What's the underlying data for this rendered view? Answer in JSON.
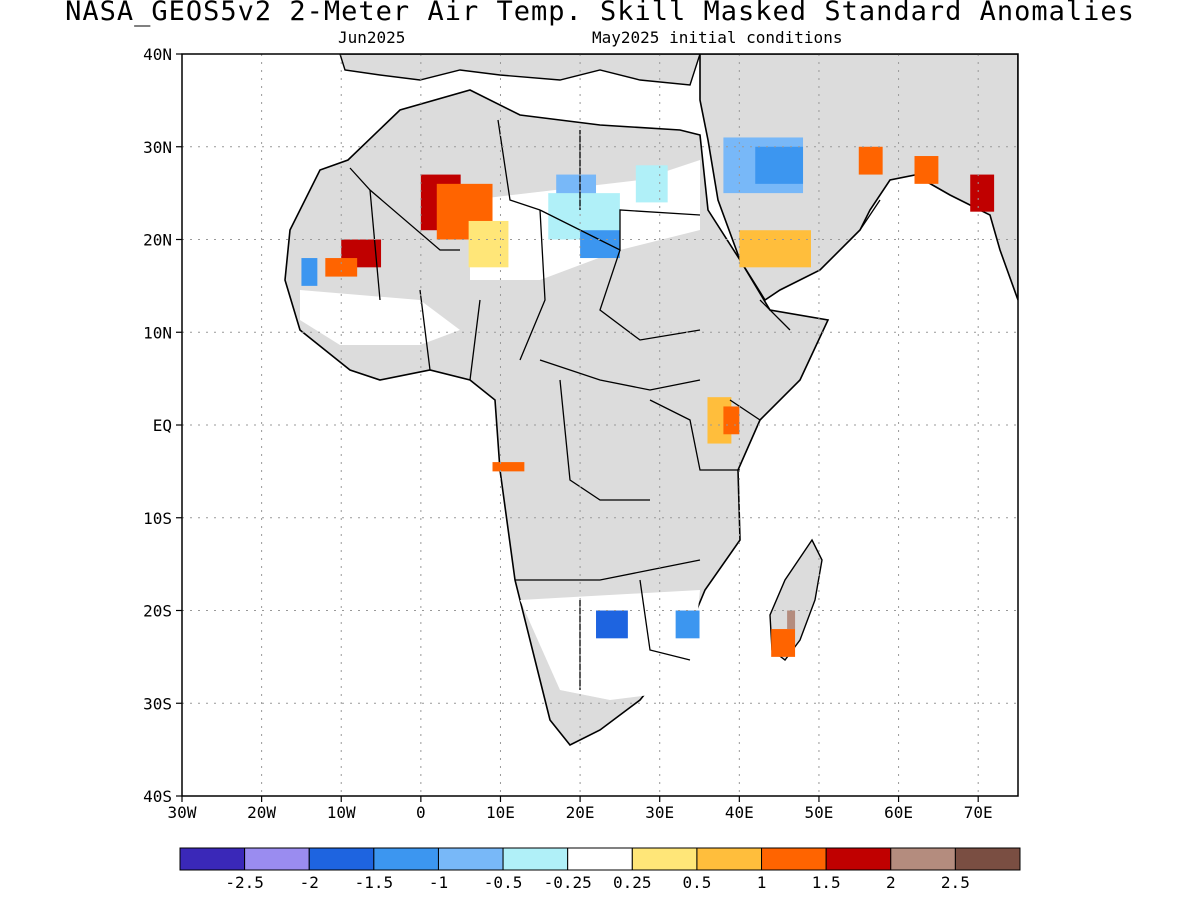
{
  "header": {
    "title": "NASA_GEOS5v2 2-Meter Air Temp. Skill Masked Standard Anomalies",
    "subtitle_left": "Jun2025",
    "subtitle_right": "May2025 initial conditions"
  },
  "map": {
    "lon_range": [
      -30,
      75
    ],
    "lat_range": [
      -40,
      40
    ],
    "x_ticks": [
      "30W",
      "20W",
      "10W",
      "0",
      "10E",
      "20E",
      "30E",
      "40E",
      "50E",
      "60E",
      "70E"
    ],
    "y_ticks": [
      "40N",
      "30N",
      "20N",
      "10N",
      "EQ",
      "10S",
      "20S",
      "30S",
      "40S"
    ],
    "grid": "dotted",
    "land_color": "#dcdcdc",
    "masked_color": "#ffffff"
  },
  "colorbar": {
    "colors": [
      "#3a28b8",
      "#9a8cf0",
      "#1e64e0",
      "#3c96f0",
      "#78b8f8",
      "#b0f0f8",
      "#ffffff",
      "#ffe678",
      "#ffbe3c",
      "#ff6400",
      "#c00000",
      "#b48c7e",
      "#7a4e42"
    ],
    "labels": [
      "-2.5",
      "-2",
      "-1.5",
      "-1",
      "-0.5",
      "-0.25",
      "0.25",
      "0.5",
      "1",
      "1.5",
      "2",
      "2.5"
    ]
  },
  "anomalies": [
    {
      "name": "sahara-warm-core",
      "color": "#c00000",
      "lon": [
        0,
        5
      ],
      "lat": [
        21,
        27
      ]
    },
    {
      "name": "sahara-warm-ring",
      "color": "#ff6400",
      "lon": [
        2,
        9
      ],
      "lat": [
        20,
        26
      ]
    },
    {
      "name": "sahara-warm-edge",
      "color": "#ffe678",
      "lon": [
        6,
        11
      ],
      "lat": [
        17,
        22
      ]
    },
    {
      "name": "mali-warm",
      "color": "#c00000",
      "lon": [
        -10,
        -5
      ],
      "lat": [
        17,
        20
      ]
    },
    {
      "name": "mali-warm-ring",
      "color": "#ff6400",
      "lon": [
        -12,
        -8
      ],
      "lat": [
        16,
        18
      ]
    },
    {
      "name": "senegal-cool",
      "color": "#3c96f0",
      "lon": [
        -15,
        -13
      ],
      "lat": [
        15,
        18
      ]
    },
    {
      "name": "libya-cool",
      "color": "#78b8f8",
      "lon": [
        17,
        22
      ],
      "lat": [
        23,
        27
      ]
    },
    {
      "name": "chad-cool",
      "color": "#b0f0f8",
      "lon": [
        16,
        25
      ],
      "lat": [
        20,
        25
      ]
    },
    {
      "name": "sudan-cool",
      "color": "#3c96f0",
      "lon": [
        20,
        25
      ],
      "lat": [
        18,
        21
      ]
    },
    {
      "name": "egypt-cool",
      "color": "#b0f0f8",
      "lon": [
        27,
        31
      ],
      "lat": [
        24,
        28
      ]
    },
    {
      "name": "arabia-cool",
      "color": "#78b8f8",
      "lon": [
        38,
        48
      ],
      "lat": [
        25,
        31
      ]
    },
    {
      "name": "arabia-cool-core",
      "color": "#3c96f0",
      "lon": [
        42,
        48
      ],
      "lat": [
        26,
        30
      ]
    },
    {
      "name": "arabia-warm",
      "color": "#ffbe3c",
      "lon": [
        40,
        49
      ],
      "lat": [
        17,
        21
      ]
    },
    {
      "name": "iran-warm",
      "color": "#ff6400",
      "lon": [
        55,
        58
      ],
      "lat": [
        27,
        30
      ]
    },
    {
      "name": "pakistan-warm",
      "color": "#ff6400",
      "lon": [
        62,
        65
      ],
      "lat": [
        26,
        29
      ]
    },
    {
      "name": "india-hot",
      "color": "#c00000",
      "lon": [
        69,
        72
      ],
      "lat": [
        23,
        27
      ]
    },
    {
      "name": "kenya-warm",
      "color": "#ffbe3c",
      "lon": [
        36,
        39
      ],
      "lat": [
        -2,
        3
      ]
    },
    {
      "name": "kenya-hot",
      "color": "#ff6400",
      "lon": [
        38,
        40
      ],
      "lat": [
        -1,
        2
      ]
    },
    {
      "name": "gabon-warm",
      "color": "#ff6400",
      "lon": [
        9,
        13
      ],
      "lat": [
        -5,
        -4
      ]
    },
    {
      "name": "botswana-cool",
      "color": "#1e64e0",
      "lon": [
        22,
        26
      ],
      "lat": [
        -23,
        -20
      ]
    },
    {
      "name": "mozambique-cool",
      "color": "#3c96f0",
      "lon": [
        32,
        35
      ],
      "lat": [
        -23,
        -20
      ]
    },
    {
      "name": "madagascar-warm",
      "color": "#ff6400",
      "lon": [
        44,
        47
      ],
      "lat": [
        -25,
        -22
      ]
    },
    {
      "name": "madagascar-hot",
      "color": "#b48c7e",
      "lon": [
        46,
        47
      ],
      "lat": [
        -22,
        -20
      ]
    }
  ]
}
